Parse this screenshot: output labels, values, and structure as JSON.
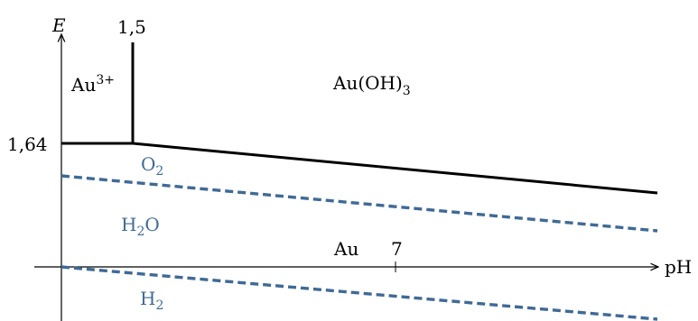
{
  "diagram": {
    "axes": {
      "y_label": "E",
      "x_label": "pH",
      "y_tick": "1,64",
      "x_tick": "7"
    },
    "vertical_boundary_label": "1,5",
    "regions": {
      "au3": {
        "base": "Au",
        "sup": "3+"
      },
      "auoh3": {
        "main": "Au(OH)",
        "sub": "3"
      },
      "au": "Au"
    },
    "water_lines": {
      "o2": {
        "base": "O",
        "sub": "2"
      },
      "h2o": {
        "pre": "H",
        "sub": "2",
        "post": "O"
      },
      "h2": {
        "base": "H",
        "sub": "2"
      }
    },
    "colors": {
      "boundary": "#000000",
      "water": "#3f6a96"
    },
    "line_styles": {
      "au_boundaries": "solid",
      "water_stability": "dashed"
    },
    "arrow_icons": [
      "arrow-right-icon",
      "arrow-up-icon"
    ]
  }
}
